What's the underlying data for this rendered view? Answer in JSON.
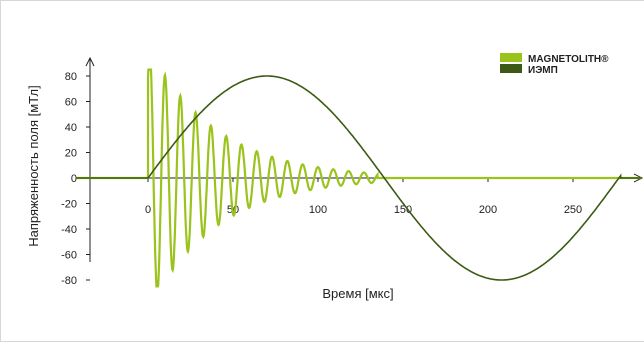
{
  "chart_data": {
    "type": "line",
    "title": "",
    "xlabel": "Время [мкс]",
    "ylabel": "Напряженность поля [мТл]",
    "xlim": [
      -38,
      290
    ],
    "ylim": [
      -80,
      85
    ],
    "x_ticks": [
      0,
      50,
      100,
      150,
      200,
      250
    ],
    "y_ticks": [
      -80,
      -60,
      -40,
      -20,
      0,
      20,
      40,
      60,
      80
    ],
    "grid": false,
    "legend": "top-right",
    "series": [
      {
        "name": "MAGNETOLITH®",
        "color": "#9ac31c",
        "start": 0,
        "amplitude": 80,
        "period": 9,
        "decay_time": 40,
        "end": 135,
        "note_values": "damped oscillation; first peak ~80 at x≈2, first trough ~-70 at x≈6"
      },
      {
        "name": "ИЭМП",
        "color": "#3d5a14",
        "start": 0,
        "amplitude": 80,
        "peak_x": 70,
        "trough_x": 208,
        "end": 278
      }
    ]
  }
}
